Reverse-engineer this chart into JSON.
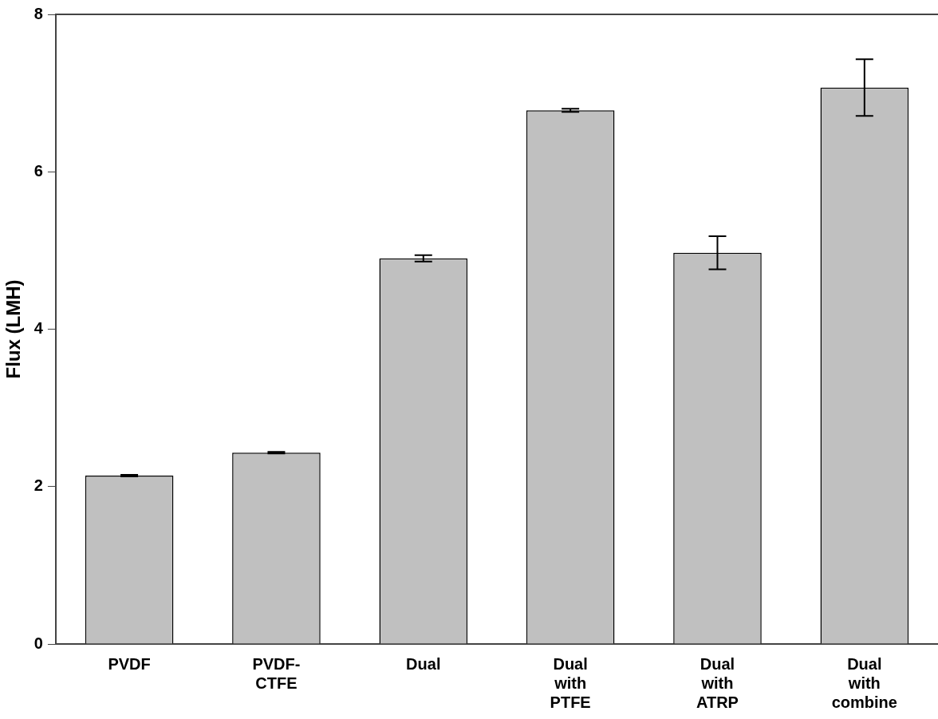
{
  "chart_data": {
    "type": "bar",
    "ylabel": "Flux (LMH)",
    "categories": [
      "PVDF",
      "PVDF-CTFE",
      "Dual",
      "Dual with PTFE",
      "Dual with ATRP",
      "Dual with combine"
    ],
    "values": [
      2.14,
      2.43,
      4.9,
      6.78,
      4.97,
      7.07
    ],
    "errors": [
      0.01,
      0.01,
      0.04,
      0.02,
      0.21,
      0.36
    ],
    "color": "#c0c0c0",
    "ylim": [
      0,
      8
    ],
    "yticks": [
      0,
      2,
      4,
      6,
      8
    ],
    "grid": false
  }
}
